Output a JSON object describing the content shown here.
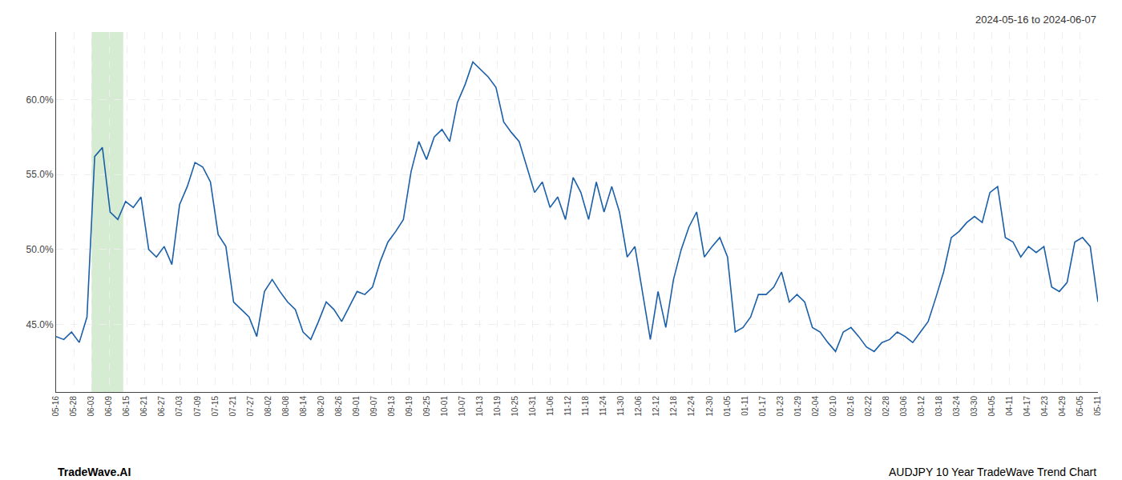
{
  "chart_data": {
    "type": "line",
    "annotations": [
      "2024-05-16 to 2024-06-07",
      "TradeWave.AI",
      "AUDJPY 10 Year TradeWave Trend Chart"
    ],
    "color": "#1a5fa8",
    "highlight_range": [
      2,
      3.8
    ],
    "highlight_color": "#d6ecd2",
    "grid": true,
    "xlim": [
      0,
      59
    ],
    "xticks": [
      {
        "value": 0,
        "label": "05-16"
      },
      {
        "value": 1,
        "label": "05-28"
      },
      {
        "value": 2,
        "label": "06-03"
      },
      {
        "value": 3,
        "label": "06-09"
      },
      {
        "value": 4,
        "label": "06-15"
      },
      {
        "value": 5,
        "label": "06-21"
      },
      {
        "value": 6,
        "label": "06-27"
      },
      {
        "value": 7,
        "label": "07-03"
      },
      {
        "value": 8,
        "label": "07-09"
      },
      {
        "value": 9,
        "label": "07-15"
      },
      {
        "value": 10,
        "label": "07-21"
      },
      {
        "value": 11,
        "label": "07-27"
      },
      {
        "value": 12,
        "label": "08-02"
      },
      {
        "value": 13,
        "label": "08-08"
      },
      {
        "value": 14,
        "label": "08-14"
      },
      {
        "value": 15,
        "label": "08-20"
      },
      {
        "value": 16,
        "label": "08-26"
      },
      {
        "value": 17,
        "label": "09-01"
      },
      {
        "value": 18,
        "label": "09-07"
      },
      {
        "value": 19,
        "label": "09-13"
      },
      {
        "value": 20,
        "label": "09-19"
      },
      {
        "value": 21,
        "label": "09-25"
      },
      {
        "value": 22,
        "label": "10-01"
      },
      {
        "value": 23,
        "label": "10-07"
      },
      {
        "value": 24,
        "label": "10-13"
      },
      {
        "value": 25,
        "label": "10-19"
      },
      {
        "value": 26,
        "label": "10-25"
      },
      {
        "value": 27,
        "label": "10-31"
      },
      {
        "value": 28,
        "label": "11-06"
      },
      {
        "value": 29,
        "label": "11-12"
      },
      {
        "value": 30,
        "label": "11-18"
      },
      {
        "value": 31,
        "label": "11-24"
      },
      {
        "value": 32,
        "label": "11-30"
      },
      {
        "value": 33,
        "label": "12-06"
      },
      {
        "value": 34,
        "label": "12-12"
      },
      {
        "value": 35,
        "label": "12-18"
      },
      {
        "value": 36,
        "label": "12-24"
      },
      {
        "value": 37,
        "label": "12-30"
      },
      {
        "value": 38,
        "label": "01-05"
      },
      {
        "value": 39,
        "label": "01-11"
      },
      {
        "value": 40,
        "label": "01-17"
      },
      {
        "value": 41,
        "label": "01-23"
      },
      {
        "value": 42,
        "label": "01-29"
      },
      {
        "value": 43,
        "label": "02-04"
      },
      {
        "value": 44,
        "label": "02-10"
      },
      {
        "value": 45,
        "label": "02-16"
      },
      {
        "value": 46,
        "label": "02-22"
      },
      {
        "value": 47,
        "label": "02-28"
      },
      {
        "value": 48,
        "label": "03-06"
      },
      {
        "value": 49,
        "label": "03-12"
      },
      {
        "value": 50,
        "label": "03-18"
      },
      {
        "value": 51,
        "label": "03-24"
      },
      {
        "value": 52,
        "label": "03-30"
      },
      {
        "value": 53,
        "label": "04-05"
      },
      {
        "value": 54,
        "label": "04-11"
      },
      {
        "value": 55,
        "label": "04-17"
      },
      {
        "value": 56,
        "label": "04-23"
      },
      {
        "value": 57,
        "label": "04-29"
      },
      {
        "value": 58,
        "label": "05-05"
      },
      {
        "value": 59,
        "label": "05-11"
      }
    ],
    "ylim": [
      40.5,
      64.5
    ],
    "yticks": [
      {
        "value": 45.0,
        "label": "45.0%"
      },
      {
        "value": 50.0,
        "label": "50.0%"
      },
      {
        "value": 55.0,
        "label": "55.0%"
      },
      {
        "value": 60.0,
        "label": "60.0%"
      }
    ],
    "x": [
      0,
      0.437037,
      0.874074,
      1.311111,
      1.748148,
      2.185185,
      2.622222,
      3.059259,
      3.496296,
      3.933333,
      4.37037,
      4.807407,
      5.244444,
      5.681481,
      6.118519,
      6.555556,
      6.992593,
      7.42963,
      7.866667,
      8.303704,
      8.740741,
      9.177778,
      9.614815,
      10.051852,
      10.488889,
      10.925926,
      11.362963,
      11.8,
      12.237037,
      12.674074,
      13.111111,
      13.548148,
      13.985185,
      14.422222,
      14.859259,
      15.296296,
      15.733333,
      16.17037,
      16.607407,
      17.044444,
      17.481481,
      17.918519,
      18.355556,
      18.792593,
      19.22963,
      19.666667,
      20.103704,
      20.540741,
      20.977778,
      21.414815,
      21.851852,
      22.288889,
      22.725926,
      23.162963,
      23.6,
      24.037037,
      24.474074,
      24.911111,
      25.348148,
      25.785185,
      26.222222,
      26.659259,
      27.096296,
      27.533333,
      27.97037,
      28.407407,
      28.844444,
      29.281481,
      29.718519,
      30.155556,
      30.592593,
      31.02963,
      31.466667,
      31.903704,
      32.340741,
      32.777778,
      33.214815,
      33.651852,
      34.088889,
      34.525926,
      34.962963,
      35.4,
      35.837037,
      36.274074,
      36.711111,
      37.148148,
      37.585185,
      38.022222,
      38.459259,
      38.896296,
      39.333333,
      39.77037,
      40.207407,
      40.644444,
      41.081481,
      41.518519,
      41.955556,
      42.392593,
      42.82963,
      43.266667,
      43.703704,
      44.140741,
      44.577778,
      45.014815,
      45.451852,
      45.888889,
      46.325926,
      46.762963,
      47.2,
      47.637037,
      48.074074,
      48.511111,
      48.948148,
      49.385185,
      49.822222,
      50.259259,
      50.696296,
      51.133333,
      51.57037,
      52.007407,
      52.444444,
      52.881481,
      53.318519,
      53.755556,
      54.192593,
      54.62963,
      55.066667,
      55.503704,
      55.940741,
      56.377778,
      56.814815,
      57.251852,
      57.688889,
      58.125926,
      58.562963,
      59
    ],
    "values": [
      44.2,
      44.0,
      44.5,
      43.8,
      45.5,
      56.2,
      56.8,
      52.5,
      52.0,
      53.2,
      52.8,
      53.5,
      50.0,
      49.5,
      50.2,
      49.0,
      53.0,
      54.2,
      55.8,
      55.5,
      54.5,
      51.0,
      50.2,
      46.5,
      46.0,
      45.5,
      44.2,
      47.2,
      48.0,
      47.2,
      46.5,
      46.0,
      44.5,
      44.0,
      45.2,
      46.5,
      46.0,
      45.2,
      46.2,
      47.2,
      47.0,
      47.5,
      49.2,
      50.5,
      51.2,
      52.0,
      55.2,
      57.2,
      56.0,
      57.5,
      58.0,
      57.2,
      59.8,
      61.0,
      62.5,
      62.0,
      61.5,
      60.8,
      58.5,
      57.8,
      57.2,
      55.5,
      53.8,
      54.5,
      52.8,
      53.5,
      52.0,
      54.8,
      53.8,
      52.0,
      54.5,
      52.5,
      54.2,
      52.5,
      49.5,
      50.2,
      47.0,
      44.0,
      47.2,
      44.8,
      48.0,
      50.0,
      51.5,
      52.5,
      49.5,
      50.2,
      50.8,
      49.5,
      44.5,
      44.8,
      45.5,
      47.0,
      47.0,
      47.5,
      48.5,
      46.5,
      47.0,
      46.5,
      44.8,
      44.5,
      43.8,
      43.2,
      44.5,
      44.8,
      44.2,
      43.5,
      43.2,
      43.8,
      44.0,
      44.5,
      44.2,
      43.8,
      44.5,
      45.2,
      46.8,
      48.5,
      50.8,
      51.2,
      51.8,
      52.2,
      51.8,
      53.8,
      54.2,
      50.8,
      50.5,
      49.5,
      50.2,
      49.8,
      50.2,
      47.5,
      47.2,
      47.8,
      50.5,
      50.8,
      50.2,
      46.5
    ]
  }
}
